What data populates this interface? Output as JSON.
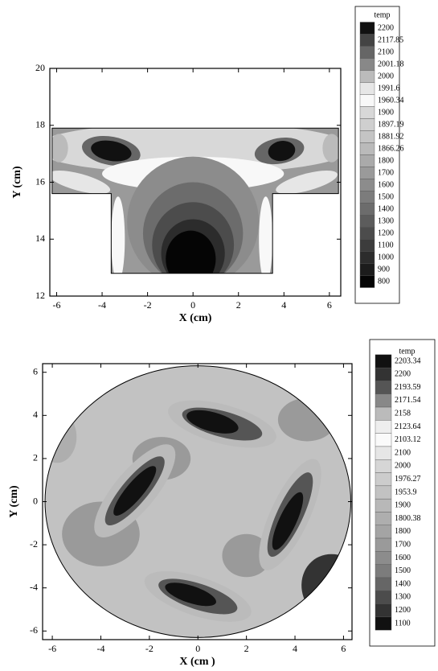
{
  "chart_data": [
    {
      "type": "contour",
      "xlabel": "X (cm)",
      "ylabel": "Y (cm)",
      "xlim": [
        -6.3,
        6.5
      ],
      "ylim": [
        12,
        20
      ],
      "xticks": [
        -6,
        -4,
        -2,
        0,
        2,
        4,
        6
      ],
      "yticks": [
        12,
        14,
        16,
        18,
        20
      ],
      "legend": {
        "title": "temp",
        "levels": [
          2200,
          2117.85,
          2100,
          2001.18,
          2000,
          1991.6,
          1960.34,
          1900,
          1897.19,
          1881.92,
          1866.26,
          1800,
          1700,
          1600,
          1500,
          1400,
          1300,
          1200,
          1100,
          1000,
          900,
          800
        ],
        "colors": [
          "#111111",
          "#444444",
          "#666666",
          "#888888",
          "#bbbbbb",
          "#e6e6e6",
          "#f8f8f8",
          "#d8d8d8",
          "#cfcfcf",
          "#c4c4c4",
          "#bababa",
          "#aaaaaa",
          "#9a9a9a",
          "#8c8c8c",
          "#7c7c7c",
          "#6c6c6c",
          "#5c5c5c",
          "#4c4c4c",
          "#3c3c3c",
          "#2c2c2c",
          "#1c1c1c",
          "#050505"
        ]
      }
    },
    {
      "type": "contour",
      "xlabel": "X (cm )",
      "ylabel": "Y (cm)",
      "xlim": [
        -6.4,
        6.35
      ],
      "ylim": [
        -6.4,
        6.4
      ],
      "xticks": [
        -6,
        -4,
        -2,
        0,
        2,
        4,
        6
      ],
      "yticks": [
        -6,
        -4,
        -2,
        0,
        2,
        4,
        6
      ],
      "legend": {
        "title": "temp",
        "levels": [
          2203.34,
          2200,
          2193.59,
          2171.54,
          2158,
          2123.64,
          2103.12,
          2100,
          2000,
          1976.27,
          1953.9,
          1900,
          1800.38,
          1800,
          1700,
          1600,
          1500,
          1400,
          1300,
          1200,
          1100
        ],
        "colors": [
          "#111111",
          "#333333",
          "#555555",
          "#888888",
          "#bbbbbb",
          "#eeeeee",
          "#fafafa",
          "#e6e6e6",
          "#d6d6d6",
          "#cccccc",
          "#c2c2c2",
          "#b8b8b8",
          "#aeaeae",
          "#a4a4a4",
          "#9a9a9a",
          "#8c8c8c",
          "#7c7c7c",
          "#666666",
          "#4c4c4c",
          "#333333",
          "#111111"
        ]
      }
    }
  ]
}
